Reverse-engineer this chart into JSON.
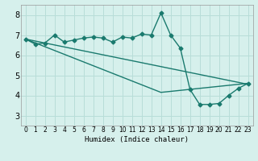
{
  "title": "",
  "xlabel": "Humidex (Indice chaleur)",
  "xlim": [
    -0.5,
    23.5
  ],
  "ylim": [
    2.5,
    8.5
  ],
  "xticks": [
    0,
    1,
    2,
    3,
    4,
    5,
    6,
    7,
    8,
    9,
    10,
    11,
    12,
    13,
    14,
    15,
    16,
    17,
    18,
    19,
    20,
    21,
    22,
    23
  ],
  "yticks": [
    3,
    4,
    5,
    6,
    7,
    8
  ],
  "bg_color": "#d6f0ec",
  "grid_color": "#b8ddd8",
  "line_color": "#1a7a6e",
  "line1_x": [
    0,
    1,
    2,
    3,
    4,
    5,
    6,
    7,
    8,
    9,
    10,
    11,
    12,
    13,
    14,
    15,
    16,
    17,
    18,
    19,
    20,
    21,
    22,
    23
  ],
  "line1_y": [
    6.8,
    6.55,
    6.6,
    7.0,
    6.65,
    6.75,
    6.85,
    6.9,
    6.85,
    6.65,
    6.9,
    6.85,
    7.05,
    7.0,
    8.1,
    7.0,
    6.35,
    4.3,
    3.55,
    3.55,
    3.6,
    4.0,
    4.35,
    4.6
  ],
  "line2_x": [
    0,
    14,
    23
  ],
  "line2_y": [
    6.8,
    4.15,
    4.6
  ],
  "line3_x": [
    0,
    23
  ],
  "line3_y": [
    6.8,
    4.55
  ],
  "marker": "D",
  "marker_size": 2.5,
  "line_width": 1.0,
  "xlabel_fontsize": 6.5,
  "tick_fontsize_x": 5.5,
  "tick_fontsize_y": 7
}
